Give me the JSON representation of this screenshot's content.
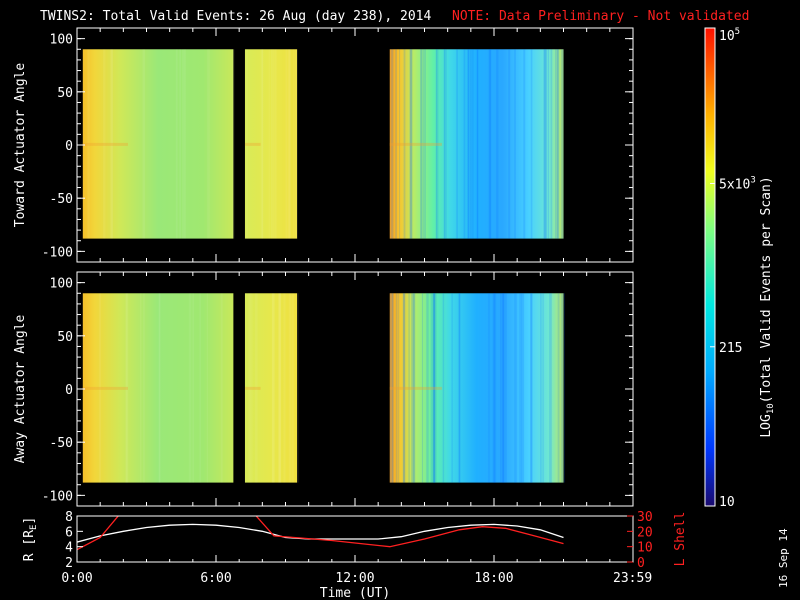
{
  "title": "TWINS2: Total Valid Events: 26 Aug (day 238), 2014",
  "note": "NOTE: Data Preliminary - Not validated",
  "date_stamp": "16 Sep 14",
  "colors": {
    "note": "#ff2020",
    "white_line": "#ffffff",
    "red_line": "#ff2020"
  },
  "chart_data": [
    {
      "type": "heatmap",
      "ylabel": "Toward Actuator Angle",
      "ylim": [
        -110,
        110
      ],
      "yticks": [
        100,
        50,
        0,
        -50,
        -100
      ],
      "xlim": [
        0,
        24
      ],
      "data_segments_hours": [
        [
          0.25,
          6.75
        ],
        [
          7.25,
          9.5
        ],
        [
          13.5,
          21.0
        ]
      ],
      "angle_range": [
        -88,
        90
      ]
    },
    {
      "type": "heatmap",
      "ylabel": "Away Actuator Angle",
      "ylim": [
        -110,
        110
      ],
      "yticks": [
        100,
        50,
        0,
        -50,
        -100
      ],
      "xlim": [
        0,
        24
      ],
      "data_segments_hours": [
        [
          0.25,
          6.75
        ],
        [
          7.25,
          9.5
        ],
        [
          13.5,
          21.0
        ]
      ],
      "angle_range": [
        -88,
        90
      ]
    },
    {
      "type": "line",
      "xlabel": "Time (UT)",
      "xticks": [
        "0:00",
        "6:00",
        "12:00",
        "18:00",
        "23:59"
      ],
      "xlim": [
        0,
        24
      ],
      "ylabel": "R [R",
      "ylabel_sub": "E",
      "ylabel_end": "]",
      "yticks": [
        2,
        4,
        6,
        8
      ],
      "ylim": [
        2,
        8
      ],
      "y2label": "L Shell",
      "y2ticks": [
        0,
        10,
        20,
        30
      ],
      "y2lim": [
        0,
        30
      ],
      "series": [
        {
          "axis": "left",
          "x": [
            0,
            1,
            2,
            3,
            4,
            5,
            6,
            7,
            8,
            9,
            10,
            11,
            12,
            13,
            14,
            15,
            16,
            17,
            18,
            19,
            20,
            21
          ],
          "y": [
            4.6,
            5.4,
            6.0,
            6.5,
            6.8,
            6.9,
            6.8,
            6.5,
            6.0,
            5.2,
            5.0,
            5.0,
            5.0,
            5.0,
            5.3,
            6.0,
            6.5,
            6.8,
            6.9,
            6.7,
            6.2,
            5.2
          ]
        },
        {
          "axis": "right",
          "x": [
            0,
            1,
            2,
            7.5,
            8.5,
            11,
            13.5,
            15,
            16.5,
            17.5,
            18.5,
            19.5,
            20.5,
            21
          ],
          "y": [
            8,
            16,
            34,
            34,
            17,
            14,
            10,
            15,
            21,
            23,
            22,
            18,
            14,
            12
          ]
        }
      ]
    }
  ],
  "colorbar": {
    "label_main": "LOG",
    "label_sub": "10",
    "label_rest": "(Total Valid Events per Scan)",
    "ticks": [
      {
        "text": "10",
        "value": 10
      },
      {
        "text": "215",
        "value": 215
      },
      {
        "text": "5x10",
        "sup": "3",
        "value": 5000
      },
      {
        "text": "10",
        "sup": "5",
        "value": 100000
      }
    ],
    "range": [
      10,
      100000
    ]
  }
}
